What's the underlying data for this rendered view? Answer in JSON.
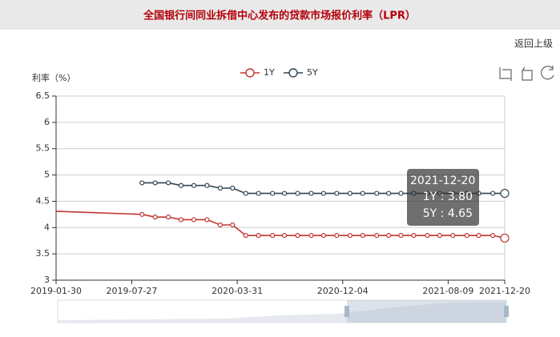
{
  "header": {
    "title": "全国银行间同业拆借中心发布的贷款市场报价利率（LPR）",
    "back_link": "返回上级"
  },
  "chart_data": {
    "type": "line",
    "y_label": "利率（%）",
    "x": [
      "2019-01-30",
      "2019-08-20",
      "2019-09-20",
      "2019-10-21",
      "2019-11-20",
      "2019-12-20",
      "2020-01-20",
      "2020-02-20",
      "2020-03-20",
      "2020-04-20",
      "2020-05-20",
      "2020-06-22",
      "2020-07-20",
      "2020-08-20",
      "2020-09-21",
      "2020-10-20",
      "2020-11-20",
      "2020-12-21",
      "2021-01-20",
      "2021-02-22",
      "2021-03-22",
      "2021-04-20",
      "2021-05-20",
      "2021-06-21",
      "2021-07-20",
      "2021-08-20",
      "2021-09-22",
      "2021-10-20",
      "2021-11-22",
      "2021-12-20"
    ],
    "series": [
      {
        "name": "1Y",
        "color": "#c23531",
        "values": [
          4.31,
          4.25,
          4.2,
          4.2,
          4.15,
          4.15,
          4.15,
          4.05,
          4.05,
          3.85,
          3.85,
          3.85,
          3.85,
          3.85,
          3.85,
          3.85,
          3.85,
          3.85,
          3.85,
          3.85,
          3.85,
          3.85,
          3.85,
          3.85,
          3.85,
          3.85,
          3.85,
          3.85,
          3.85,
          3.8
        ]
      },
      {
        "name": "5Y",
        "color": "#2f4554",
        "values": [
          null,
          4.85,
          4.85,
          4.85,
          4.8,
          4.8,
          4.8,
          4.75,
          4.75,
          4.65,
          4.65,
          4.65,
          4.65,
          4.65,
          4.65,
          4.65,
          4.65,
          4.65,
          4.65,
          4.65,
          4.65,
          4.65,
          4.65,
          4.65,
          4.65,
          4.65,
          4.65,
          4.65,
          4.65,
          4.65
        ]
      }
    ],
    "xlim": [
      "2019-01-30",
      "2021-12-20"
    ],
    "xticks": [
      "2019-01-30",
      "2019-07-27",
      "2020-03-31",
      "2020-12-04",
      "2021-08-09",
      "2021-12-20"
    ],
    "ylim": [
      3,
      6.5
    ],
    "yticks": [
      3,
      3.5,
      4,
      4.5,
      5,
      5.5,
      6,
      6.5
    ],
    "grid": true,
    "tooltip": {
      "title": "2021-12-20",
      "lines": [
        "1Y : 3.80",
        "5Y : 4.65"
      ]
    }
  }
}
